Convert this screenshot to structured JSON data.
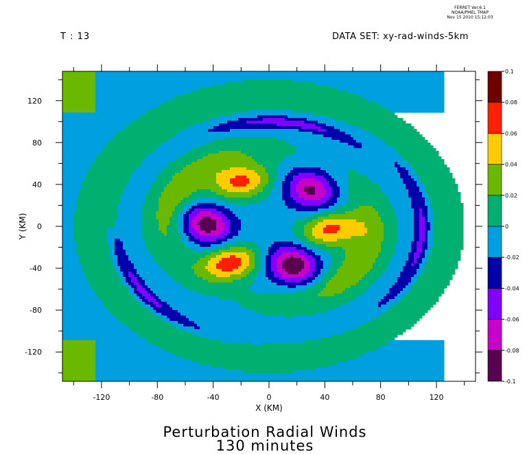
{
  "stamp": {
    "line1": "FERRET Ver.6.1",
    "line2": "NOAA/PMEL TMAP",
    "line3": "Nov 15 2010 15:12:03"
  },
  "header": {
    "time_label": "T : 13",
    "dataset_label": "DATA SET: xy-rad-winds-5km"
  },
  "titles": {
    "line1": "Perturbation Radial Winds",
    "line2": "130 minutes"
  },
  "chart_data": {
    "type": "heatmap",
    "xlabel": "X (KM)",
    "ylabel": "Y (KM)",
    "xlim": [
      -148,
      148
    ],
    "ylim": [
      -148,
      148
    ],
    "xticks": [
      -120,
      -80,
      -40,
      0,
      40,
      80,
      120
    ],
    "yticks": [
      -120,
      -80,
      -40,
      0,
      40,
      80,
      120
    ],
    "colorbar": {
      "levels": [
        -0.1,
        -0.08,
        -0.06,
        -0.04,
        -0.02,
        0,
        0.02,
        0.04,
        0.06,
        0.08,
        0.1
      ],
      "labels": [
        "-0.1",
        "-0.08",
        "-0.06",
        "-0.04",
        "-0.02",
        "0",
        "0.02",
        "0.04",
        "0.06",
        "0.08",
        "0.1"
      ],
      "colors": [
        "#5a0050",
        "#c800c8",
        "#8000ff",
        "#0000aa",
        "#00a0e0",
        "#00b070",
        "#6ab800",
        "#ffcc00",
        "#ff2000",
        "#700000"
      ]
    },
    "field": {
      "background_level": -0.01,
      "positive_lobes": [
        {
          "x": -20,
          "y": 42,
          "peak": 0.075
        },
        {
          "x": 43,
          "y": -3,
          "peak": 0.075
        },
        {
          "x": -28,
          "y": -35,
          "peak": 0.085
        }
      ],
      "negative_lobes": [
        {
          "x": 30,
          "y": 35,
          "peak": -0.075
        },
        {
          "x": -45,
          "y": 2,
          "peak": -0.085
        },
        {
          "x": 17,
          "y": -37,
          "peak": -0.09
        }
      ],
      "outer_bands": [
        {
          "name": "upper-arc",
          "level": -0.03
        },
        {
          "name": "left-arc",
          "level": -0.03
        },
        {
          "name": "right-arc",
          "level": -0.03
        }
      ]
    }
  }
}
